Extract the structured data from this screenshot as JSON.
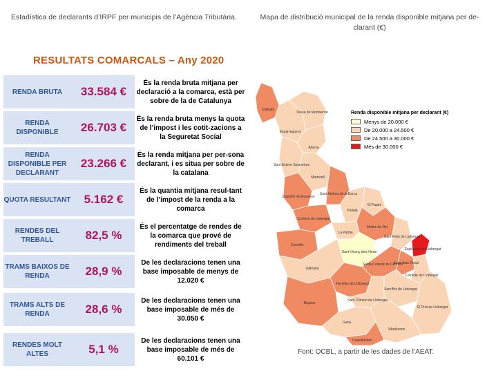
{
  "header": {
    "left": "Estadística de declarants d’IRPF per municipis de l’Agència Tributària.",
    "right": "Mapa de distribució municipal de la renda disponible mitjana per de-clarant (€)"
  },
  "section_title": "RESULTATS COMARCALS – Any 2020",
  "indicators": [
    {
      "label": "RENDA BRUTA",
      "value": "33.584 €",
      "description": "És la renda bruta mitjana per declaració a la comarca, està per sobre de la de Catalunya"
    },
    {
      "label": "RENDA DISPONIBLE",
      "value": "26.703 €",
      "description": "És la renda bruta menys la quota de l’impost i les cotit-zacions a la Seguretat Social"
    },
    {
      "label": "RENDA DISPONIBLE PER DECLARANT",
      "value": "23.266 €",
      "description": "És la renda mitjana per per-sona declarant,  i es situa per sobre de la catalana"
    },
    {
      "label": "QUOTA RESULTANT",
      "value": "5.162 €",
      "description": "És la quantia mitjana resul-tant de l’impost de la renda a la comarca"
    },
    {
      "label": "RENDES DEL TREBALL",
      "value": "82,5 %",
      "description": "És el percentatge de rendes de la comarca que prové de rendiments del treball"
    },
    {
      "label": "TRAMS BAIXOS DE RENDA",
      "value": "28,9 %",
      "description": "De les declaracions tenen una base imposable de menys de 12.020 €"
    },
    {
      "label": "TRAMS ALTS DE RENDA",
      "value": "28,6 %",
      "description": "De les declaracions tenen una base imposable de més de 30.050 €"
    },
    {
      "label": "RENDES MOLT ALTES",
      "value": "5,1 %",
      "description": "De les declaracions tenen una base imposable de més de 60.101 €"
    }
  ],
  "legend": {
    "title": "Renda disponible mitjana per declarant (€)",
    "items": [
      {
        "label": "Menys de 20.000 €",
        "color": "#ffffcc"
      },
      {
        "label": "De 20.000 a 24.500 €",
        "color": "#fad5b5"
      },
      {
        "label": "De 24.500 a 30.000 €",
        "color": "#ef8a62"
      },
      {
        "label": "Més de 30.000 €",
        "color": "#e8191c"
      }
    ]
  },
  "municipalities": {
    "collbato": "Collbató",
    "olesa": "Olesa de Montserrat",
    "esparreguera": "Esparreguera",
    "abrera": "Abrera",
    "esteve": "Sant Esteve Sesrovires",
    "martorell": "Martorell",
    "andreu": "Sant Andreu de la Barca",
    "papiol": "El Papiol",
    "castellvi": "Castellví de Rosanes",
    "corbera": "Corbera de Llobregat",
    "palleja": "Pallejà",
    "molins": "Molins de Rei",
    "palma": "La Palma",
    "feliu": "Sant Feliu de Llobregat",
    "cervello": "Cervelló",
    "vicenc": "Sant Vicenç dels Horts",
    "esplugues": "Esplugues de Llobregat",
    "vallirana": "Vallirana",
    "coloma": "Santa Coloma de Cervelló",
    "joan": "Sant Joan Despí",
    "cornella": "Cornellà de Llobregat",
    "torrelles": "Torrelles de Llobregat",
    "climent": "Sant Climent de Llobregat",
    "boi": "Sant Boi de Llobregat",
    "begues": "Begues",
    "prat": "El Prat de Llobregat",
    "gava": "Gavà",
    "viladecans": "Viladecans",
    "castelldefels": "Castelldefels"
  },
  "source": "Font: OCBL, a partir de les dades de l’AEAT."
}
